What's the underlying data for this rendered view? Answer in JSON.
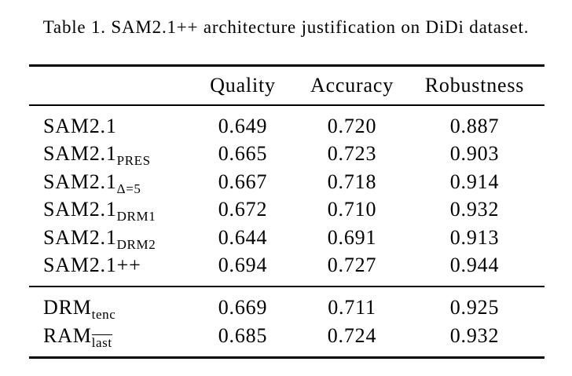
{
  "caption": "Table 1. SAM2.1++ architecture justification on DiDi dataset.",
  "colors": {
    "text": "#000000",
    "background": "#ffffff",
    "rule": "#000000"
  },
  "chart_data": {
    "type": "table",
    "title": "Table 1. SAM2.1++ architecture justification on DiDi dataset.",
    "columns": [
      "Quality",
      "Accuracy",
      "Robustness"
    ],
    "groups": [
      {
        "rows": [
          {
            "label_base": "SAM2.1",
            "label_sub": "",
            "values": [
              "0.649",
              "0.720",
              "0.887"
            ]
          },
          {
            "label_base": "SAM2.1",
            "label_sub": "PRES",
            "values": [
              "0.665",
              "0.723",
              "0.903"
            ]
          },
          {
            "label_base": "SAM2.1",
            "label_sub": "Δ=5",
            "values": [
              "0.667",
              "0.718",
              "0.914"
            ]
          },
          {
            "label_base": "SAM2.1",
            "label_sub": "DRM1",
            "values": [
              "0.672",
              "0.710",
              "0.932"
            ]
          },
          {
            "label_base": "SAM2.1",
            "label_sub": "DRM2",
            "values": [
              "0.644",
              "0.691",
              "0.913"
            ]
          },
          {
            "label_base": "SAM2.1++",
            "label_sub": "",
            "values": [
              "0.694",
              "0.727",
              "0.944"
            ]
          }
        ]
      },
      {
        "rows": [
          {
            "label_base": "DRM",
            "label_sub": "tenc",
            "values": [
              "0.669",
              "0.711",
              "0.925"
            ]
          },
          {
            "label_base": "RAM",
            "label_sub": "last",
            "label_sub_overline": true,
            "values": [
              "0.685",
              "0.724",
              "0.932"
            ]
          }
        ]
      }
    ]
  }
}
